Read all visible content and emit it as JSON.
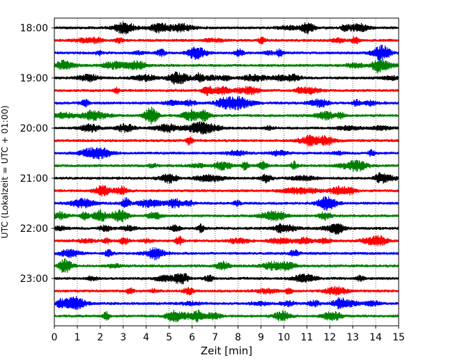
{
  "chart_data": {
    "type": "line",
    "title": "",
    "xlabel": "Zeit  [min]",
    "ylabel": "UTC (Lokalzeit = UTC + 01:00)",
    "xlim": [
      0,
      15
    ],
    "x_ticks": [
      0,
      1,
      2,
      3,
      4,
      5,
      6,
      7,
      8,
      9,
      10,
      11,
      12,
      13,
      14,
      15
    ],
    "y_ticks": [
      "18:00",
      "19:00",
      "20:00",
      "21:00",
      "22:00",
      "23:00"
    ],
    "trace_interval_min": 15,
    "trace_colors_cycle": [
      "#000000",
      "#ff0000",
      "#0000ff",
      "#008000"
    ],
    "grid": {
      "x": "dotted",
      "y": false
    },
    "legend": "none",
    "traces": [
      {
        "start": "18:00",
        "color": "#000000"
      },
      {
        "start": "18:15",
        "color": "#ff0000"
      },
      {
        "start": "18:30",
        "color": "#0000ff"
      },
      {
        "start": "18:45",
        "color": "#008000"
      },
      {
        "start": "19:00",
        "color": "#000000"
      },
      {
        "start": "19:15",
        "color": "#ff0000"
      },
      {
        "start": "19:30",
        "color": "#0000ff"
      },
      {
        "start": "19:45",
        "color": "#008000"
      },
      {
        "start": "20:00",
        "color": "#000000"
      },
      {
        "start": "20:15",
        "color": "#ff0000"
      },
      {
        "start": "20:30",
        "color": "#0000ff"
      },
      {
        "start": "20:45",
        "color": "#008000"
      },
      {
        "start": "21:00",
        "color": "#000000"
      },
      {
        "start": "21:15",
        "color": "#ff0000"
      },
      {
        "start": "21:30",
        "color": "#0000ff"
      },
      {
        "start": "21:45",
        "color": "#008000"
      },
      {
        "start": "22:00",
        "color": "#000000"
      },
      {
        "start": "22:15",
        "color": "#ff0000"
      },
      {
        "start": "22:30",
        "color": "#0000ff"
      },
      {
        "start": "22:45",
        "color": "#008000"
      },
      {
        "start": "23:00",
        "color": "#000000"
      },
      {
        "start": "23:15",
        "color": "#ff0000"
      },
      {
        "start": "23:30",
        "color": "#0000ff"
      },
      {
        "start": "23:45",
        "color": "#008000"
      }
    ]
  }
}
